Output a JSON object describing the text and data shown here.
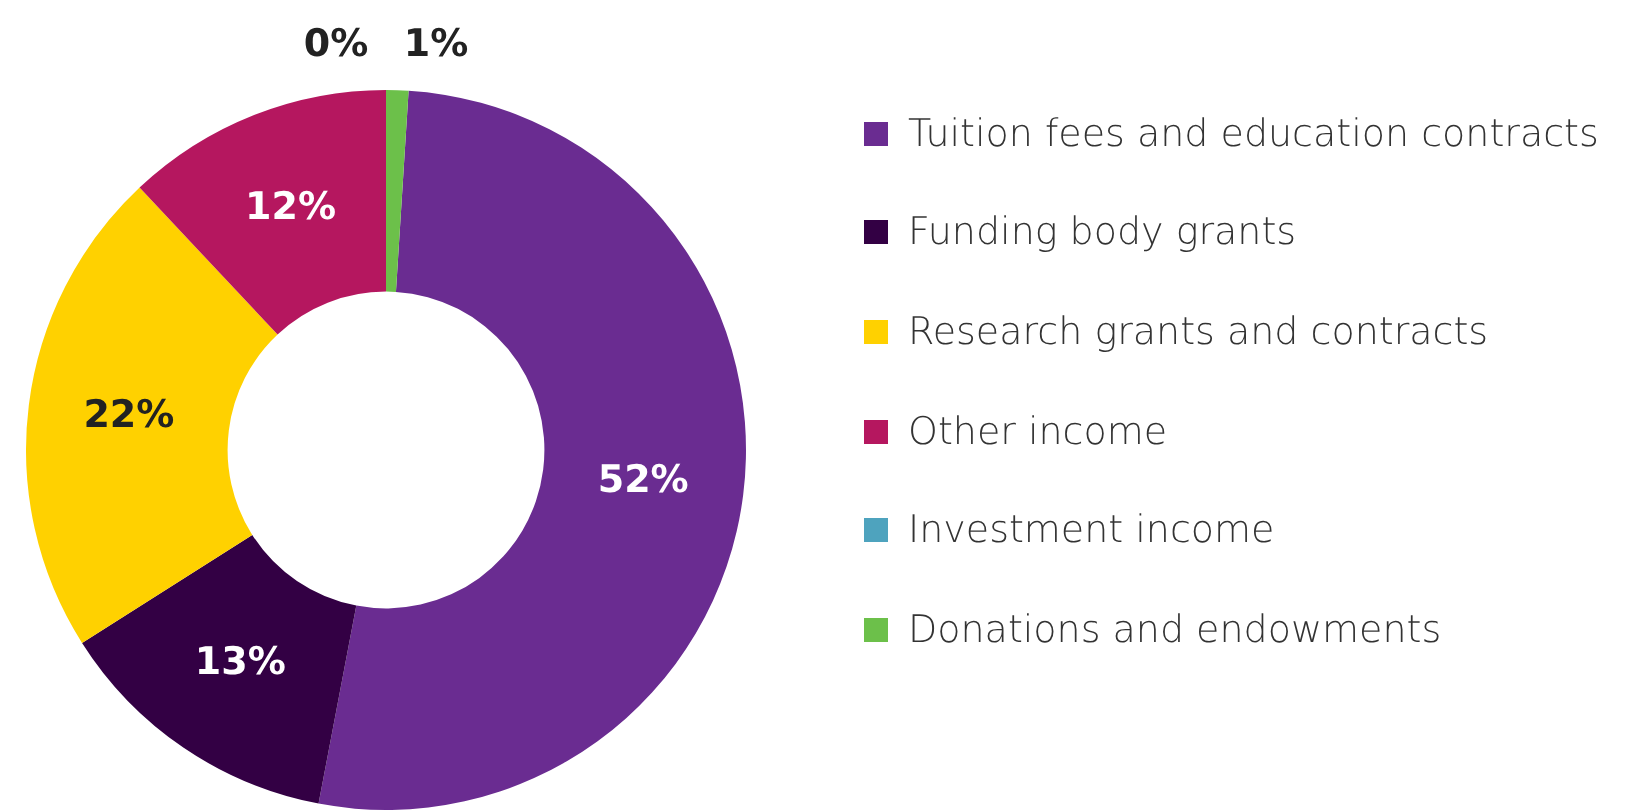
{
  "chart_data": {
    "type": "donut",
    "categories": [
      "Tuition fees and education contracts",
      "Funding body grants",
      "Research grants and contracts",
      "Other income",
      "Investment income",
      "Donations and endowments"
    ],
    "values": [
      52,
      13,
      22,
      12,
      0,
      1
    ],
    "colors": [
      "#6a2c91",
      "#330044",
      "#ffd100",
      "#b5175f",
      "#4ea3be",
      "#6cc04a"
    ],
    "value_labels": [
      "52%",
      "13%",
      "22%",
      "12%",
      "0%",
      "1%"
    ],
    "legend": "right"
  }
}
